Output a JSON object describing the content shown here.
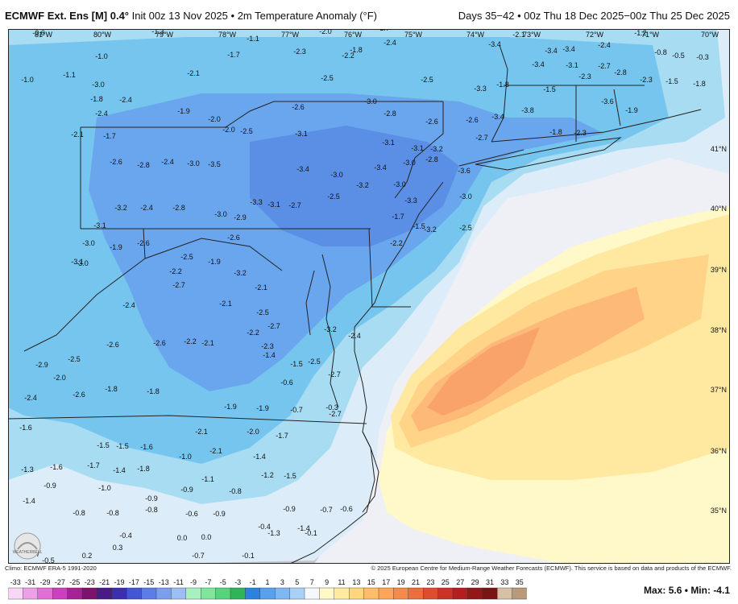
{
  "header": {
    "model": "ECMWF Ext. Ens [M]",
    "resolution": "0.4°",
    "init": "Init 00z 13 Nov 2025",
    "field": "2m Temperature Anomaly (°F)",
    "valid": "Days 35−42 • 00z Thu 18 Dec 2025−00z Thu 25 Dec 2025"
  },
  "footer": {
    "climo": "Climo: ECMWF ERA-5 1991-2020",
    "copyright": "© 2025 European Centre for Medium-Range Weather Forecasts (ECMWF). This service is based on data and products of the ECMWF.",
    "max_label": "Max:",
    "max_value": "5.6",
    "min_label": "Min:",
    "min_value": "-4.1",
    "logo_text": "WEATHERBELL"
  },
  "colorbar": {
    "ticks": [
      "-33",
      "-31",
      "-29",
      "-27",
      "-25",
      "-23",
      "-21",
      "-19",
      "-17",
      "-15",
      "-13",
      "-11",
      "-9",
      "-7",
      "-5",
      "-3",
      "-1",
      "1",
      "3",
      "5",
      "7",
      "9",
      "11",
      "13",
      "15",
      "17",
      "19",
      "21",
      "23",
      "25",
      "27",
      "29",
      "31",
      "33",
      "35"
    ],
    "colors": [
      "#f7d7f5",
      "#ef9fe8",
      "#e36ed8",
      "#cc3fbf",
      "#a72395",
      "#7d136f",
      "#4a1a86",
      "#3b2fb0",
      "#4256d6",
      "#5a7de8",
      "#7a9ff0",
      "#9cbef5",
      "#a7f0bf",
      "#7fe59a",
      "#55d47a",
      "#2fb458",
      "#2c82e0",
      "#5aa0ec",
      "#7db8f2",
      "#a9d1f7",
      "#f4f8fb",
      "#fff9c8",
      "#ffeaa0",
      "#ffd67c",
      "#ffbd6a",
      "#ffa55a",
      "#f58a4b",
      "#ec6e3d",
      "#dd4e31",
      "#c93427",
      "#b31e1e",
      "#951818",
      "#7b1414",
      "#d7c1a6",
      "#b89979"
    ]
  },
  "map": {
    "colors": {
      "land": "#c8c8cc",
      "water": "#eef0f6",
      "cool_1": "#dcecf8",
      "cool_2": "#a7dcf3",
      "cool_3": "#76c5ef",
      "cool_4": "#6aa6ee",
      "cool_5": "#5b8fe6",
      "warm_1": "#fff8c8",
      "warm_2": "#ffe9a0",
      "warm_3": "#ffd488",
      "warm_4": "#fdb978",
      "warm_5": "#f9a26a"
    },
    "lon_labels": [
      "81°W",
      "80°W",
      "79°W",
      "78°W",
      "77°W",
      "76°W",
      "75°W",
      "74°W",
      "73°W",
      "72°W",
      "71°W",
      "70°W"
    ],
    "lat_labels": [
      "41°N",
      "40°N",
      "39°N",
      "38°N",
      "37°N",
      "36°N",
      "35°N"
    ],
    "values": [
      "-0.6",
      "-1.4",
      "-1.3",
      "-1.3",
      "-1.1",
      "-2.0",
      "-1.7",
      "-2.7",
      "-2.1",
      "-3.1",
      "-2.3",
      "-1.2",
      "-0.7",
      "-0.3",
      "-1.0",
      "-1.7",
      "-2.3",
      "-2.2",
      "-1.8",
      "-2.4",
      "-3.4",
      "-3.4",
      "-3.4",
      "-2.4",
      "-0.8",
      "-0.5",
      "-0.3",
      "-1.0",
      "-1.1",
      "-2.1",
      "-2.5",
      "-2.5",
      "-3.4",
      "-3.1",
      "-2.3",
      "-2.7",
      "-2.8",
      "-2.3",
      "-1.5",
      "-1.8",
      "-3.0",
      "-3.3",
      "-1.8",
      "-1.5",
      "-1.8",
      "-2.4",
      "-1.9",
      "-2.0",
      "-2.0",
      "-2.5",
      "-2.6",
      "-3.0",
      "-2.8",
      "-2.6",
      "-2.6",
      "-3.4",
      "-3.8",
      "-3.6",
      "-1.9",
      "-2.4",
      "-2.1",
      "-1.7",
      "-3.1",
      "-3.1",
      "-3.1",
      "-3.2",
      "-2.7",
      "-1.8",
      "-2.3",
      "-2.6",
      "-2.8",
      "-2.4",
      "-3.0",
      "-3.5",
      "-3.4",
      "-3.0",
      "-3.2",
      "-3.4",
      "-3.0",
      "-2.8",
      "-3.6",
      "-3.0",
      "-3.3",
      "-3.1",
      "-2.7",
      "-2.5",
      "-3.0",
      "-3.3",
      "-3.2",
      "-2.4",
      "-2.8",
      "-3.0",
      "-2.9",
      "-2.6",
      "-1.9",
      "-2.2",
      "-1.7",
      "-1.5",
      "-3.2",
      "-2.5",
      "-3.1",
      "-3.0",
      "-2.5",
      "-2.2",
      "-2.6",
      "-3.0",
      "-1.9",
      "-3.1",
      "-2.1",
      "-2.7",
      "-2.4",
      "-3.2",
      "-2.5",
      "-2.1",
      "-3.2",
      "-2.7",
      "-2.2",
      "-2.5",
      "-2.3",
      "-1.4",
      "-2.4",
      "-2.2",
      "-2.6",
      "-2.1",
      "-2.6",
      "-2.9",
      "-2.5",
      "-2.0",
      "-1.5",
      "-0.6",
      "-2.7",
      "-2.4",
      "-2.6",
      "-1.8",
      "-1.8",
      "-1.9",
      "-1.9",
      "-0.7",
      "-0.3",
      "-2.7",
      "-1.6",
      "-2.1",
      "-2.0",
      "-1.7",
      "-1.5",
      "-1.5",
      "-1.6",
      "-2.1",
      "-1.4",
      "-1.3",
      "-1.6",
      "-1.7",
      "-1.4",
      "-1.8",
      "-1.0",
      "-1.2",
      "-0.9",
      "-1.5",
      "-1.0",
      "-0.9",
      "-1.1",
      "-0.8",
      "-0.9",
      "-1.4",
      "-0.8",
      "-0.8",
      "-0.8",
      "-0.6",
      "-0.9",
      "-0.9",
      "-0.7",
      "-0.6",
      "-0.4",
      "0.0",
      "0.0",
      "-0.4",
      "-1.3",
      "-1.4",
      "-0.5",
      "-0.7",
      "0.2",
      "0.3",
      "-0.7",
      "-0.1",
      "-0.1"
    ]
  }
}
